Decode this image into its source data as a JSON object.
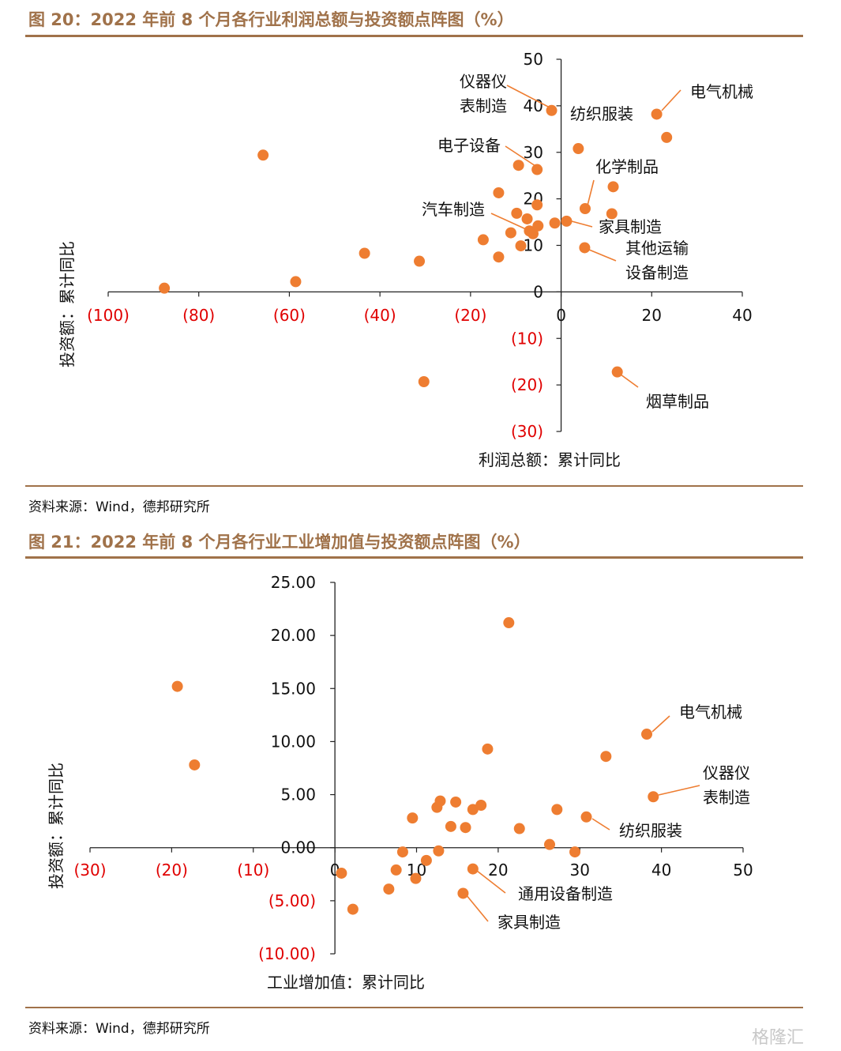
{
  "figure1": {
    "title": "图 20：2022 年前 8 个月各行业利润总额与投资额点阵图（%）",
    "source": "资料来源：Wind，德邦研究所",
    "chart_data": {
      "type": "scatter",
      "xlabel": "利润总额：累计同比",
      "ylabel": "投资额：累计同比",
      "xlim": [
        -100,
        40
      ],
      "ylim": [
        -30,
        50
      ],
      "x_ticks": [
        {
          "v": -100,
          "label": "(100)"
        },
        {
          "v": -80,
          "label": "(80)"
        },
        {
          "v": -60,
          "label": "(60)"
        },
        {
          "v": -40,
          "label": "(40)"
        },
        {
          "v": -20,
          "label": "(20)"
        },
        {
          "v": 0,
          "label": "0"
        },
        {
          "v": 20,
          "label": "20"
        },
        {
          "v": 40,
          "label": "40"
        }
      ],
      "y_ticks": [
        {
          "v": 50,
          "label": "50"
        },
        {
          "v": 40,
          "label": "40"
        },
        {
          "v": 30,
          "label": "30"
        },
        {
          "v": 20,
          "label": "20"
        },
        {
          "v": 10,
          "label": "10"
        },
        {
          "v": 0,
          "label": "0"
        },
        {
          "v": -10,
          "label": "(10)"
        },
        {
          "v": -20,
          "label": "(20)"
        },
        {
          "v": -30,
          "label": "(30)"
        }
      ],
      "color": "#ee7d31",
      "points": [
        {
          "x": -87.6,
          "y": 0.8
        },
        {
          "x": -65.8,
          "y": 29.4
        },
        {
          "x": -58.6,
          "y": 2.2
        },
        {
          "x": -43.4,
          "y": 8.3
        },
        {
          "x": -31.3,
          "y": 6.6
        },
        {
          "x": -30.3,
          "y": -19.3
        },
        {
          "x": -17.2,
          "y": 11.2
        },
        {
          "x": -13.8,
          "y": 21.3
        },
        {
          "x": -13.8,
          "y": 7.5
        },
        {
          "x": -11.1,
          "y": 12.7
        },
        {
          "x": -9.8,
          "y": 16.9
        },
        {
          "x": -9.4,
          "y": 27.2
        },
        {
          "x": -8.9,
          "y": 9.9
        },
        {
          "x": -7.5,
          "y": 15.7
        },
        {
          "x": -7.0,
          "y": 13.1
        },
        {
          "x": -6.2,
          "y": 12.5
        },
        {
          "x": -5.3,
          "y": 18.7
        },
        {
          "x": -5.1,
          "y": 14.2
        },
        {
          "x": -5.3,
          "y": 26.3
        },
        {
          "x": -2.1,
          "y": 39.0
        },
        {
          "x": -1.4,
          "y": 14.8
        },
        {
          "x": 1.2,
          "y": 15.2
        },
        {
          "x": 3.8,
          "y": 30.8
        },
        {
          "x": 5.2,
          "y": 9.5
        },
        {
          "x": 5.3,
          "y": 17.9
        },
        {
          "x": 11.2,
          "y": 16.8
        },
        {
          "x": 11.5,
          "y": 22.6
        },
        {
          "x": 12.4,
          "y": -17.2
        },
        {
          "x": 21.1,
          "y": 38.2
        },
        {
          "x": 23.3,
          "y": 33.2
        }
      ],
      "annotations": [
        {
          "lines": [
            "仪器仪",
            "表制造"
          ]
        },
        {
          "lines": [
            "纺织服装"
          ]
        },
        {
          "lines": [
            "电气机械"
          ]
        },
        {
          "lines": [
            "电子设备"
          ]
        },
        {
          "lines": [
            "化学制品"
          ]
        },
        {
          "lines": [
            "汽车制造"
          ]
        },
        {
          "lines": [
            "家具制造"
          ]
        },
        {
          "lines": [
            "其他运输",
            "设备制造"
          ]
        },
        {
          "lines": [
            "烟草制品"
          ]
        }
      ]
    }
  },
  "figure2": {
    "title": "图 21：2022 年前 8 个月各行业工业增加值与投资额点阵图（%）",
    "source": "资料来源：Wind，德邦研究所",
    "chart_data": {
      "type": "scatter",
      "xlabel": "工业增加值：累计同比",
      "ylabel": "投资额：累计同比",
      "xlim": [
        -30,
        50
      ],
      "ylim": [
        -10,
        25
      ],
      "x_ticks": [
        {
          "v": -30,
          "label": "(30)"
        },
        {
          "v": -20,
          "label": "(20)"
        },
        {
          "v": -10,
          "label": "(10)"
        },
        {
          "v": 0,
          "label": "0"
        },
        {
          "v": 10,
          "label": "10"
        },
        {
          "v": 20,
          "label": "20"
        },
        {
          "v": 30,
          "label": "30"
        },
        {
          "v": 40,
          "label": "40"
        },
        {
          "v": 50,
          "label": "50"
        }
      ],
      "y_ticks": [
        {
          "v": 25,
          "label": "25.00"
        },
        {
          "v": 20,
          "label": "20.00"
        },
        {
          "v": 15,
          "label": "15.00"
        },
        {
          "v": 10,
          "label": "10.00"
        },
        {
          "v": 5,
          "label": "5.00"
        },
        {
          "v": 0,
          "label": "0.00"
        },
        {
          "v": -5,
          "label": "(5.00)"
        },
        {
          "v": -10,
          "label": "(10.00)"
        }
      ],
      "color": "#ee7d31",
      "points": [
        {
          "x": -19.3,
          "y": 15.2
        },
        {
          "x": -17.2,
          "y": 7.8
        },
        {
          "x": 0.8,
          "y": -2.4
        },
        {
          "x": 2.2,
          "y": -5.8
        },
        {
          "x": 6.6,
          "y": -3.9
        },
        {
          "x": 7.5,
          "y": -2.1
        },
        {
          "x": 8.3,
          "y": -0.4
        },
        {
          "x": 9.5,
          "y": 2.8
        },
        {
          "x": 9.9,
          "y": -2.9
        },
        {
          "x": 11.2,
          "y": -1.2
        },
        {
          "x": 12.5,
          "y": 3.8
        },
        {
          "x": 12.7,
          "y": -0.3
        },
        {
          "x": 12.9,
          "y": 4.4
        },
        {
          "x": 14.2,
          "y": 2.0
        },
        {
          "x": 14.8,
          "y": 4.3
        },
        {
          "x": 15.7,
          "y": -4.3
        },
        {
          "x": 16.0,
          "y": 1.9
        },
        {
          "x": 16.9,
          "y": -2.0
        },
        {
          "x": 16.9,
          "y": 3.6
        },
        {
          "x": 17.9,
          "y": 4.0
        },
        {
          "x": 18.7,
          "y": 9.3
        },
        {
          "x": 21.3,
          "y": 21.2
        },
        {
          "x": 22.6,
          "y": 1.8
        },
        {
          "x": 26.3,
          "y": 0.3
        },
        {
          "x": 27.2,
          "y": 3.6
        },
        {
          "x": 29.4,
          "y": -0.4
        },
        {
          "x": 30.8,
          "y": 2.9
        },
        {
          "x": 33.2,
          "y": 8.6
        },
        {
          "x": 38.2,
          "y": 10.7
        },
        {
          "x": 39.0,
          "y": 4.8
        }
      ],
      "annotations": [
        {
          "lines": [
            "电气机械"
          ]
        },
        {
          "lines": [
            "仪器仪",
            "表制造"
          ]
        },
        {
          "lines": [
            "纺织服装"
          ]
        },
        {
          "lines": [
            "通用设备制造"
          ]
        },
        {
          "lines": [
            "家具制造"
          ]
        }
      ]
    }
  },
  "watermark": "格隆汇"
}
